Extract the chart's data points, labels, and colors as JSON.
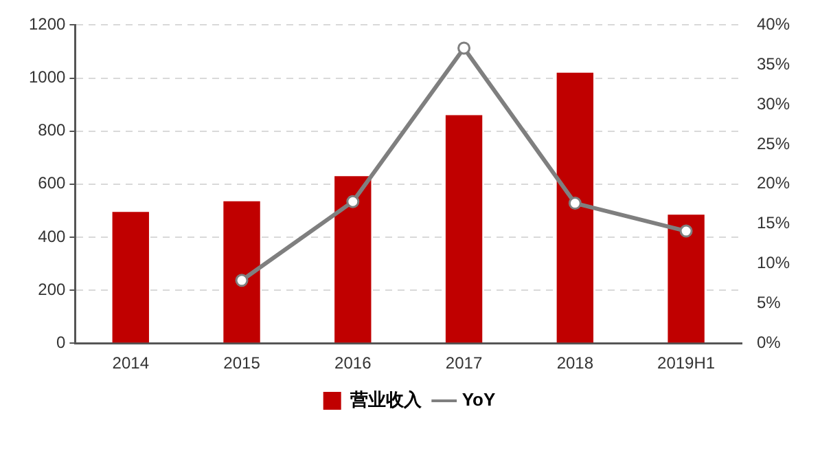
{
  "chart_data": {
    "type": "bar",
    "categories": [
      "2014",
      "2015",
      "2016",
      "2017",
      "2018",
      "2019H1"
    ],
    "series": [
      {
        "name": "营业收入",
        "color": "#c00000",
        "values": [
          495,
          535,
          630,
          860,
          1020,
          485
        ]
      },
      {
        "name": "YoY",
        "type": "line",
        "axis": "y2",
        "color": "#7f7f7f",
        "marker": "circle",
        "values": [
          null,
          7.9,
          17.8,
          37.1,
          17.6,
          14.1
        ]
      }
    ],
    "ylim": [
      0,
      1200
    ],
    "yticks": [
      0,
      200,
      400,
      600,
      800,
      1000,
      1200
    ],
    "y2lim": [
      0,
      40
    ],
    "y2ticks": [
      {
        "value": 0,
        "label": "0%"
      },
      {
        "value": 5,
        "label": "5%"
      },
      {
        "value": 10,
        "label": "10%"
      },
      {
        "value": 15,
        "label": "15%"
      },
      {
        "value": 20,
        "label": "20%"
      },
      {
        "value": 25,
        "label": "25%"
      },
      {
        "value": 30,
        "label": "30%"
      },
      {
        "value": 35,
        "label": "35%"
      },
      {
        "value": 40,
        "label": "40%"
      }
    ],
    "grid": "y",
    "legend": "bottom"
  }
}
